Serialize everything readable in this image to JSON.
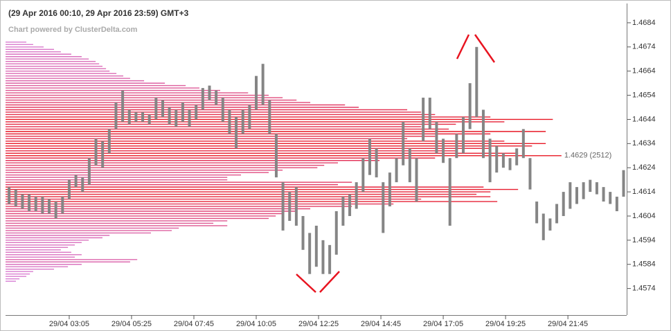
{
  "chart_data": {
    "type": "ohlc_profile",
    "title": "(29 Apr 2016 00:10, 29 Apr 2016 23:59) GMT+3",
    "subtitle": "Chart powered by ClusterDelta.com",
    "poc_label": "1.4629 (2512)",
    "xlim": [
      42,
      1437
    ],
    "ylim": [
      1.4563,
      1.4692
    ],
    "yticks": [
      1.4574,
      1.4584,
      1.4594,
      1.4604,
      1.4614,
      1.4624,
      1.4634,
      1.4644,
      1.4654,
      1.4664,
      1.4674,
      1.4684
    ],
    "xticks": [
      {
        "value": 185,
        "label": "29/04 03:05"
      },
      {
        "value": 325,
        "label": "29/04 05:25"
      },
      {
        "value": 465,
        "label": "29/04 07:45"
      },
      {
        "value": 605,
        "label": "29/04 10:05"
      },
      {
        "value": 745,
        "label": "29/04 12:25"
      },
      {
        "value": 885,
        "label": "29/04 14:45"
      },
      {
        "value": 1025,
        "label": "29/04 17:05"
      },
      {
        "value": 1165,
        "label": "29/04 19:25"
      },
      {
        "value": 1305,
        "label": "29/04 21:45"
      }
    ],
    "bars": {
      "color": "#858585",
      "x": [
        50,
        65,
        80,
        95,
        110,
        125,
        140,
        155,
        170,
        185,
        200,
        215,
        230,
        245,
        260,
        275,
        290,
        305,
        320,
        335,
        350,
        365,
        380,
        395,
        410,
        425,
        440,
        455,
        470,
        485,
        500,
        515,
        530,
        545,
        560,
        575,
        590,
        605,
        620,
        635,
        650,
        665,
        680,
        695,
        710,
        725,
        740,
        755,
        770,
        785,
        800,
        815,
        830,
        845,
        860,
        875,
        890,
        905,
        920,
        935,
        950,
        965,
        980,
        995,
        1010,
        1025,
        1040,
        1055,
        1070,
        1085,
        1100,
        1115,
        1130,
        1145,
        1160,
        1175,
        1190,
        1205,
        1220,
        1235,
        1250,
        1265,
        1280,
        1295,
        1310,
        1325,
        1340,
        1355,
        1370,
        1385,
        1400,
        1415,
        1430
      ],
      "high": [
        1.4616,
        1.4615,
        1.4613,
        1.4613,
        1.4612,
        1.4612,
        1.4611,
        1.461,
        1.4612,
        1.4619,
        1.4621,
        1.462,
        1.4628,
        1.4636,
        1.4635,
        1.464,
        1.4651,
        1.4656,
        1.4648,
        1.4647,
        1.4647,
        1.4646,
        1.4653,
        1.4652,
        1.4649,
        1.4648,
        1.4651,
        1.4648,
        1.465,
        1.4657,
        1.4658,
        1.4656,
        1.4653,
        1.4648,
        1.4645,
        1.4648,
        1.465,
        1.4662,
        1.4667,
        1.4652,
        1.4638,
        1.4618,
        1.4614,
        1.4616,
        1.4604,
        1.4597,
        1.46,
        1.4594,
        1.4592,
        1.4606,
        1.4612,
        1.4613,
        1.4618,
        1.4628,
        1.4636,
        1.4632,
        1.4618,
        1.4622,
        1.4628,
        1.4643,
        1.4632,
        1.4628,
        1.4653,
        1.4653,
        1.4643,
        1.4636,
        1.4628,
        1.4638,
        1.4645,
        1.4659,
        1.4674,
        1.4648,
        1.4636,
        1.4633,
        1.463,
        1.4628,
        1.4632,
        1.464,
        1.4628,
        1.461,
        1.4605,
        1.4603,
        1.4609,
        1.4614,
        1.4618,
        1.4616,
        1.4618,
        1.4619,
        1.4618,
        1.4616,
        1.4614,
        1.4612,
        1.4623
      ],
      "low": [
        1.4609,
        1.4608,
        1.4607,
        1.4606,
        1.4606,
        1.4605,
        1.4605,
        1.4603,
        1.4605,
        1.4611,
        1.4616,
        1.4614,
        1.4617,
        1.4625,
        1.4624,
        1.463,
        1.464,
        1.4643,
        1.4642,
        1.4643,
        1.4643,
        1.4642,
        1.4644,
        1.4645,
        1.4642,
        1.4641,
        1.4643,
        1.4641,
        1.4644,
        1.4648,
        1.4652,
        1.465,
        1.4643,
        1.4638,
        1.4632,
        1.4638,
        1.464,
        1.4648,
        1.465,
        1.4638,
        1.462,
        1.4598,
        1.4602,
        1.46,
        1.459,
        1.458,
        1.4583,
        1.458,
        1.458,
        1.4588,
        1.46,
        1.4604,
        1.4607,
        1.4614,
        1.4621,
        1.462,
        1.4597,
        1.4608,
        1.4618,
        1.4625,
        1.4618,
        1.461,
        1.4635,
        1.464,
        1.463,
        1.4626,
        1.46,
        1.4628,
        1.463,
        1.464,
        1.4645,
        1.4628,
        1.4618,
        1.4622,
        1.4624,
        1.4623,
        1.4625,
        1.4628,
        1.4615,
        1.4601,
        1.4594,
        1.4598,
        1.4601,
        1.4604,
        1.4607,
        1.4609,
        1.4611,
        1.4614,
        1.4613,
        1.461,
        1.4609,
        1.4606,
        1.4612
      ]
    },
    "profile": {
      "color_low": "#d880d8",
      "color_high": "#e81420",
      "levels": [
        1.4676,
        1.4675,
        1.4674,
        1.4673,
        1.4672,
        1.4671,
        1.467,
        1.4669,
        1.4668,
        1.4667,
        1.4666,
        1.4665,
        1.4664,
        1.4663,
        1.4662,
        1.4661,
        1.466,
        1.4659,
        1.4658,
        1.4657,
        1.4656,
        1.4655,
        1.4654,
        1.4653,
        1.4652,
        1.4651,
        1.465,
        1.4649,
        1.4648,
        1.4647,
        1.4646,
        1.4645,
        1.4644,
        1.4643,
        1.4642,
        1.4641,
        1.464,
        1.4639,
        1.4638,
        1.4637,
        1.4636,
        1.4635,
        1.4634,
        1.4633,
        1.4632,
        1.4631,
        1.463,
        1.4629,
        1.4628,
        1.4627,
        1.4626,
        1.4625,
        1.4624,
        1.4623,
        1.4622,
        1.4621,
        1.462,
        1.4619,
        1.4618,
        1.4617,
        1.4616,
        1.4615,
        1.4614,
        1.4613,
        1.4612,
        1.4611,
        1.461,
        1.4609,
        1.4608,
        1.4607,
        1.4606,
        1.4605,
        1.4604,
        1.4603,
        1.4602,
        1.4601,
        1.46,
        1.4599,
        1.4598,
        1.4597,
        1.4596,
        1.4595,
        1.4594,
        1.4593,
        1.4592,
        1.4591,
        1.459,
        1.4589,
        1.4588,
        1.4587,
        1.4586,
        1.4585,
        1.4584,
        1.4583,
        1.4582,
        1.4581,
        1.458,
        1.4579,
        1.4578,
        1.4577
      ],
      "volumes": [
        94,
        125,
        172,
        219,
        250,
        297,
        344,
        376,
        407,
        423,
        438,
        454,
        470,
        501,
        532,
        563,
        626,
        720,
        814,
        876,
        970,
        1096,
        1189,
        1252,
        1315,
        1377,
        1534,
        1596,
        1815,
        1878,
        1941,
        2191,
        2473,
        2254,
        2035,
        1878,
        2003,
        2441,
        2191,
        1941,
        1815,
        2254,
        2441,
        2379,
        2191,
        2035,
        2316,
        2512,
        1941,
        1690,
        1502,
        1440,
        1409,
        1252,
        1189,
        1064,
        1002,
        1002,
        1565,
        1502,
        2160,
        2316,
        2191,
        2128,
        2191,
        1878,
        2222,
        1753,
        1565,
        1377,
        1315,
        1252,
        1221,
        1189,
        1002,
        939,
        1002,
        783,
        751,
        657,
        470,
        438,
        376,
        344,
        313,
        282,
        250,
        297,
        344,
        313,
        595,
        563,
        344,
        282,
        219,
        125,
        110,
        94,
        63,
        47
      ]
    }
  }
}
